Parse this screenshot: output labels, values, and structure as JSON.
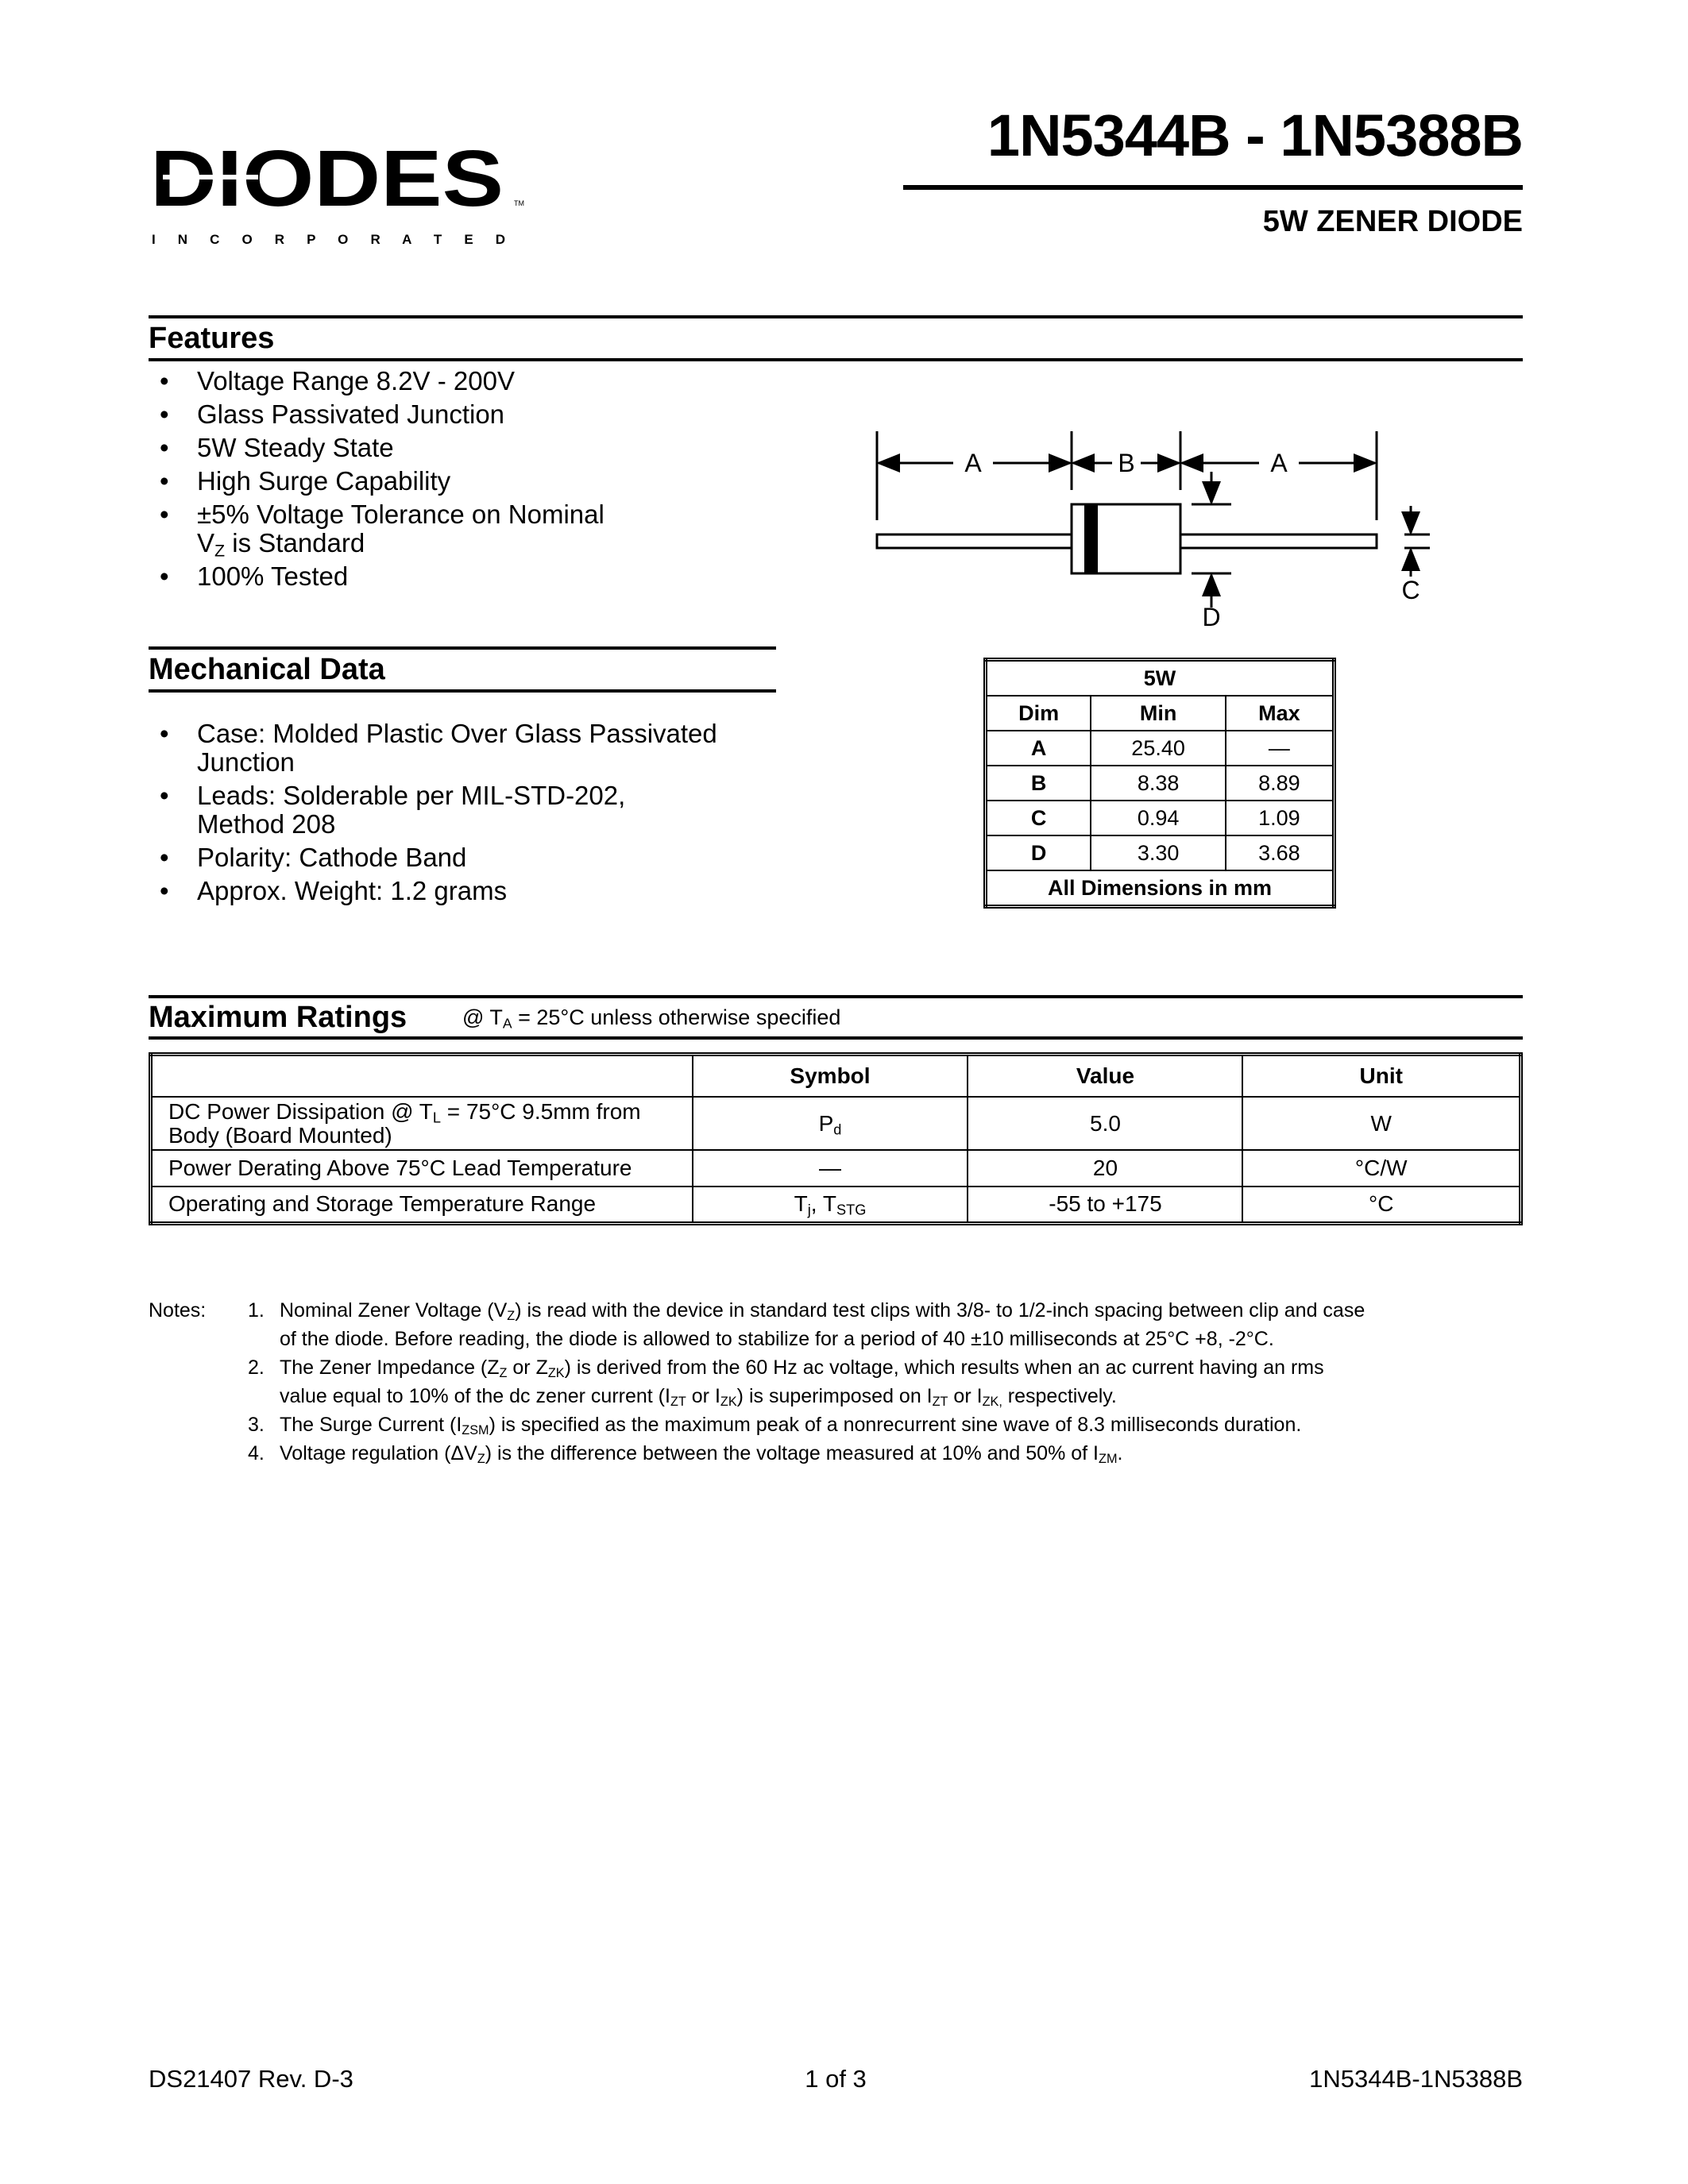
{
  "logo": {
    "text": "DIODES",
    "subtext": "I N C O R P O R A T E D",
    "tm": "TM"
  },
  "header": {
    "title": "1N5344B - 1N5388B",
    "subtitle": "5W ZENER DIODE"
  },
  "features": {
    "heading": "Features",
    "items": [
      [
        {
          "t": "Voltage Range 8.2V - 200V"
        }
      ],
      [
        {
          "t": "Glass Passivated Junction"
        }
      ],
      [
        {
          "t": "5W Steady State"
        }
      ],
      [
        {
          "t": "High Surge Capability"
        }
      ],
      [
        {
          "t": "±5% Voltage Tolerance on Nominal"
        },
        {
          "br": true
        },
        {
          "t": "V"
        },
        {
          "t": "Z",
          "sub": true
        },
        {
          "t": " is Standard"
        }
      ],
      [
        {
          "t": "100% Tested"
        }
      ]
    ]
  },
  "mechanical": {
    "heading": "Mechanical Data",
    "items": [
      [
        {
          "t": "Case: Molded Plastic Over Glass Passivated"
        },
        {
          "br": true
        },
        {
          "t": "Junction"
        }
      ],
      [
        {
          "t": "Leads: Solderable per MIL-STD-202,"
        },
        {
          "br": true
        },
        {
          "t": "Method 208"
        }
      ],
      [
        {
          "t": "Polarity: Cathode Band"
        }
      ],
      [
        {
          "t": "Approx. Weight: 1.2 grams"
        }
      ]
    ]
  },
  "diagram": {
    "labels": {
      "a": "A",
      "b": "B",
      "c": "C",
      "d": "D"
    }
  },
  "dim_table": {
    "title": "5W",
    "headers": [
      "Dim",
      "Min",
      "Max"
    ],
    "rows": [
      [
        "A",
        "25.40",
        "—"
      ],
      [
        "B",
        "8.38",
        "8.89"
      ],
      [
        "C",
        "0.94",
        "1.09"
      ],
      [
        "D",
        "3.30",
        "3.68"
      ]
    ],
    "footer": "All Dimensions in mm"
  },
  "ratings": {
    "heading": "Maximum Ratings",
    "condition": [
      {
        "t": "@ T"
      },
      {
        "t": "A",
        "sub": true
      },
      {
        "t": " = 25°C unless otherwise specified"
      }
    ],
    "headers": [
      "",
      "Symbol",
      "Value",
      "Unit"
    ],
    "rows": [
      {
        "desc": [
          {
            "t": "DC Power Dissipation @ T"
          },
          {
            "t": "L",
            "sub": true
          },
          {
            "t": " = 75°C 9.5mm from"
          },
          {
            "br": true
          },
          {
            "t": "Body (Board Mounted)"
          }
        ],
        "symbol": [
          {
            "t": "P"
          },
          {
            "t": "d",
            "sub": true
          }
        ],
        "value": "5.0",
        "unit": "W"
      },
      {
        "desc": [
          {
            "t": "Power Derating Above 75°C Lead Temperature"
          }
        ],
        "symbol": [
          {
            "t": "—"
          }
        ],
        "value": "20",
        "unit": "°C/W"
      },
      {
        "desc": [
          {
            "t": "Operating and Storage Temperature Range"
          }
        ],
        "symbol": [
          {
            "t": "T"
          },
          {
            "t": "j",
            "sub": true
          },
          {
            "t": ", T"
          },
          {
            "t": "STG",
            "sub": true
          }
        ],
        "value": "-55 to +175",
        "unit": "°C"
      }
    ]
  },
  "notes": {
    "label": "Notes:",
    "items": [
      {
        "num": "1.",
        "text": [
          {
            "t": "Nominal Zener Voltage (V"
          },
          {
            "t": "Z",
            "sub": true
          },
          {
            "t": ") is read with the device in standard test clips with 3/8- to 1/2-inch spacing between clip and case"
          },
          {
            "br": true
          },
          {
            "t": "of the diode. Before reading, the diode is allowed to stabilize for a period of 40 ±10 milliseconds at 25°C +8, -2°C."
          }
        ]
      },
      {
        "num": "2.",
        "text": [
          {
            "t": "The Zener Impedance (Z"
          },
          {
            "t": "Z",
            "sub": true
          },
          {
            "t": " or Z"
          },
          {
            "t": "ZK",
            "sub": true
          },
          {
            "t": ") is derived from the 60 Hz ac voltage, which results when an ac current having an rms"
          },
          {
            "br": true
          },
          {
            "t": "value equal to 10% of the dc zener current (I"
          },
          {
            "t": "ZT",
            "sub": true
          },
          {
            "t": " or I"
          },
          {
            "t": "ZK",
            "sub": true
          },
          {
            "t": ") is superimposed on I"
          },
          {
            "t": "ZT",
            "sub": true
          },
          {
            "t": " or I"
          },
          {
            "t": "ZK,",
            "sub": true
          },
          {
            "t": " respectively."
          }
        ]
      },
      {
        "num": "3.",
        "text": [
          {
            "t": "The Surge Current (I"
          },
          {
            "t": "ZSM",
            "sub": true
          },
          {
            "t": ") is specified as the maximum peak of a nonrecurrent sine wave of 8.3 milliseconds duration."
          }
        ]
      },
      {
        "num": "4.",
        "text": [
          {
            "t": "Voltage regulation (ΔV"
          },
          {
            "t": "Z",
            "sub": true
          },
          {
            "t": ") is the difference between the voltage measured at 10% and 50% of I"
          },
          {
            "t": "ZM",
            "sub": true
          },
          {
            "t": "."
          }
        ]
      }
    ]
  },
  "footer": {
    "left": "DS21407 Rev. D-3",
    "center": "1 of 3",
    "right": "1N5344B-1N5388B"
  }
}
